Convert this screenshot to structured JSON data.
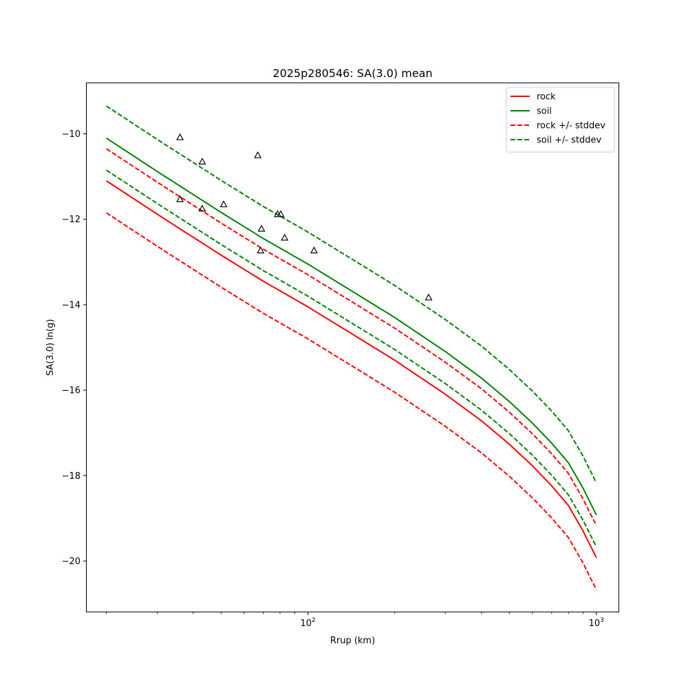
{
  "chart_data": {
    "type": "line",
    "title": "2025p280546: SA(3.0) mean",
    "xlabel": "Rrup (km)",
    "ylabel": "SA(3.0) ln(g)",
    "xscale": "log",
    "xlim": [
      17,
      1200
    ],
    "ylim": [
      -21.2,
      -8.8
    ],
    "x_major_ticks": [
      {
        "value": 100,
        "base": "10",
        "exp": "2"
      },
      {
        "value": 1000,
        "base": "10",
        "exp": "3"
      }
    ],
    "x_minor_ticks": [
      20,
      30,
      40,
      50,
      60,
      70,
      80,
      90,
      200,
      300,
      400,
      500,
      600,
      700,
      800,
      900
    ],
    "y_ticks": [
      {
        "value": -10,
        "label": "−10"
      },
      {
        "value": -12,
        "label": "−12"
      },
      {
        "value": -14,
        "label": "−14"
      },
      {
        "value": -16,
        "label": "−16"
      },
      {
        "value": -18,
        "label": "−18"
      },
      {
        "value": -20,
        "label": "−20"
      }
    ],
    "grid": false,
    "legend_position": "top-right",
    "series": [
      {
        "name": "rock",
        "color": "#ff0000",
        "dash": "solid",
        "points": [
          [
            20,
            -11.1
          ],
          [
            30,
            -11.88
          ],
          [
            50,
            -12.84
          ],
          [
            70,
            -13.45
          ],
          [
            100,
            -14.05
          ],
          [
            150,
            -14.78
          ],
          [
            200,
            -15.3
          ],
          [
            300,
            -16.1
          ],
          [
            400,
            -16.72
          ],
          [
            500,
            -17.27
          ],
          [
            600,
            -17.77
          ],
          [
            700,
            -18.24
          ],
          [
            800,
            -18.7
          ],
          [
            900,
            -19.3
          ],
          [
            1000,
            -19.92
          ]
        ]
      },
      {
        "name": "soil",
        "color": "#008000",
        "dash": "solid",
        "points": [
          [
            20,
            -10.1
          ],
          [
            30,
            -10.88
          ],
          [
            50,
            -11.84
          ],
          [
            70,
            -12.45
          ],
          [
            100,
            -13.05
          ],
          [
            150,
            -13.78
          ],
          [
            200,
            -14.3
          ],
          [
            300,
            -15.1
          ],
          [
            400,
            -15.72
          ],
          [
            500,
            -16.27
          ],
          [
            600,
            -16.77
          ],
          [
            700,
            -17.24
          ],
          [
            800,
            -17.7
          ],
          [
            900,
            -18.3
          ],
          [
            1000,
            -18.92
          ]
        ]
      },
      {
        "name": "rock +/- stddev",
        "color": "#ff0000",
        "dash": "dashed",
        "points": [
          [
            20,
            -10.35
          ],
          [
            30,
            -11.13
          ],
          [
            50,
            -12.09
          ],
          [
            70,
            -12.7
          ],
          [
            100,
            -13.3
          ],
          [
            150,
            -14.03
          ],
          [
            200,
            -14.55
          ],
          [
            300,
            -15.35
          ],
          [
            400,
            -15.97
          ],
          [
            500,
            -16.52
          ],
          [
            600,
            -17.02
          ],
          [
            700,
            -17.49
          ],
          [
            800,
            -17.95
          ],
          [
            900,
            -18.55
          ],
          [
            1000,
            -19.17
          ]
        ],
        "show_in_legend": true
      },
      {
        "name": "",
        "color": "#ff0000",
        "dash": "dashed",
        "points": [
          [
            20,
            -11.85
          ],
          [
            30,
            -12.63
          ],
          [
            50,
            -13.59
          ],
          [
            70,
            -14.2
          ],
          [
            100,
            -14.8
          ],
          [
            150,
            -15.53
          ],
          [
            200,
            -16.05
          ],
          [
            300,
            -16.85
          ],
          [
            400,
            -17.47
          ],
          [
            500,
            -18.02
          ],
          [
            600,
            -18.52
          ],
          [
            700,
            -18.99
          ],
          [
            800,
            -19.45
          ],
          [
            900,
            -20.05
          ],
          [
            1000,
            -20.67
          ]
        ],
        "show_in_legend": false
      },
      {
        "name": "soil +/- stddev",
        "color": "#008000",
        "dash": "dashed",
        "points": [
          [
            20,
            -9.35
          ],
          [
            30,
            -10.13
          ],
          [
            50,
            -11.09
          ],
          [
            70,
            -11.7
          ],
          [
            100,
            -12.3
          ],
          [
            150,
            -13.03
          ],
          [
            200,
            -13.55
          ],
          [
            300,
            -14.35
          ],
          [
            400,
            -14.97
          ],
          [
            500,
            -15.52
          ],
          [
            600,
            -16.02
          ],
          [
            700,
            -16.49
          ],
          [
            800,
            -16.95
          ],
          [
            900,
            -17.55
          ],
          [
            1000,
            -18.17
          ]
        ],
        "show_in_legend": true
      },
      {
        "name": "",
        "color": "#008000",
        "dash": "dashed",
        "points": [
          [
            20,
            -10.85
          ],
          [
            30,
            -11.63
          ],
          [
            50,
            -12.59
          ],
          [
            70,
            -13.2
          ],
          [
            100,
            -13.8
          ],
          [
            150,
            -14.53
          ],
          [
            200,
            -15.05
          ],
          [
            300,
            -15.85
          ],
          [
            400,
            -16.47
          ],
          [
            500,
            -17.02
          ],
          [
            600,
            -17.52
          ],
          [
            700,
            -17.99
          ],
          [
            800,
            -18.45
          ],
          [
            900,
            -19.05
          ],
          [
            1000,
            -19.67
          ]
        ],
        "show_in_legend": false
      }
    ],
    "observations": {
      "marker": "triangle",
      "color": "#000000",
      "points": [
        [
          36,
          -10.08
        ],
        [
          36,
          -11.53
        ],
        [
          43,
          -10.65
        ],
        [
          43,
          -11.75
        ],
        [
          51,
          -11.65
        ],
        [
          67,
          -10.5
        ],
        [
          68.5,
          -12.73
        ],
        [
          69,
          -12.22
        ],
        [
          78.5,
          -11.88
        ],
        [
          80.5,
          -11.88
        ],
        [
          83,
          -12.43
        ],
        [
          105,
          -12.73
        ],
        [
          262,
          -13.83
        ]
      ]
    }
  }
}
